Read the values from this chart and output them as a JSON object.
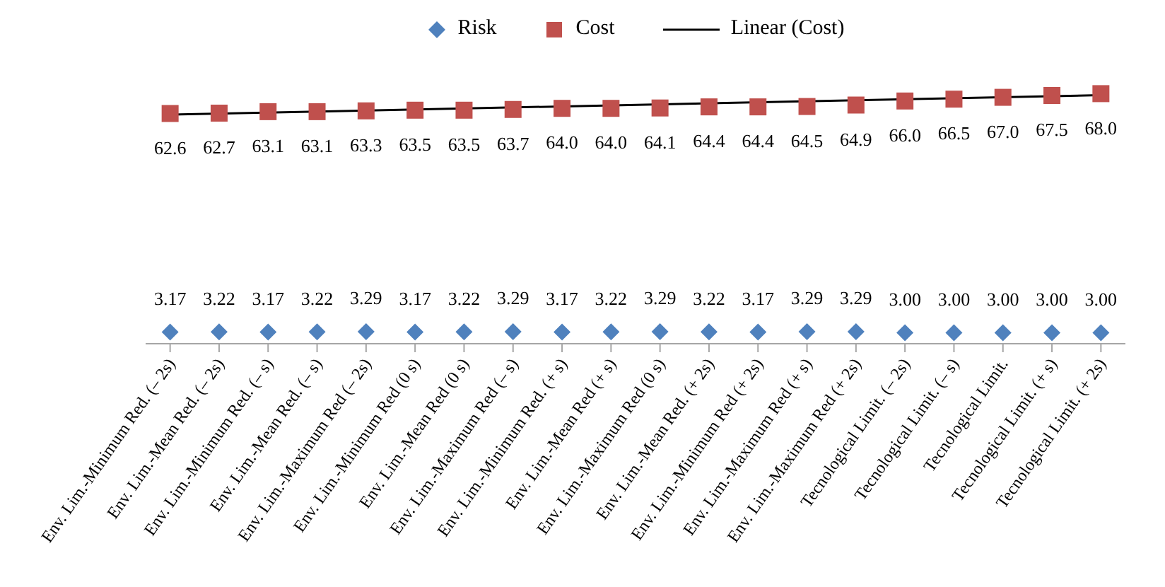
{
  "chart_data": {
    "type": "scatter",
    "categories": [
      "Env. Lim.-Minimum Red. (– 2s)",
      "Env. Lim.-Mean Red. (– 2s)",
      "Env. Lim.-Minimum Red. (– s)",
      "Env. Lim.-Mean Red. (– s)",
      "Env. Lim.-Maximum Red (– 2s)",
      "Env. Lim.-Minimum Red (0 s)",
      "Env. Lim.-Mean Red (0 s)",
      "Env. Lim.-Maximum Red (– s)",
      "Env. Lim.-Minimum Red. (+ s)",
      "Env. Lim.-Mean Red (+ s)",
      "Env. Lim.-Maximum Red (0 s)",
      "Env. Lim.-Mean Red. (+ 2s)",
      "Env. Lim.-Minimum Red (+ 2s)",
      "Env. Lim.-Maximum Red (+ s)",
      "Env. Lim.-Maximum Red (+ 2s)",
      "Tecnological Limit. (– 2s)",
      "Tecnological Limit. (– s)",
      "Tecnological Limit.",
      "Tecnological Limit. (+ s)",
      "Tecnological Limit. (+ 2s)"
    ],
    "series": [
      {
        "name": "Risk",
        "marker": "diamond",
        "color": "#4f81bd",
        "values": [
          3.17,
          3.22,
          3.17,
          3.22,
          3.29,
          3.17,
          3.22,
          3.29,
          3.17,
          3.22,
          3.29,
          3.22,
          3.17,
          3.29,
          3.29,
          3.0,
          3.0,
          3.0,
          3.0,
          3.0
        ],
        "value_labels": [
          "3.17",
          "3.22",
          "3.17",
          "3.22",
          "3.29",
          "3.17",
          "3.22",
          "3.29",
          "3.17",
          "3.22",
          "3.29",
          "3.22",
          "3.17",
          "3.29",
          "3.29",
          "3.00",
          "3.00",
          "3.00",
          "3.00",
          "3.00"
        ]
      },
      {
        "name": "Cost",
        "marker": "square",
        "color": "#c0504d",
        "values": [
          62.6,
          62.7,
          63.1,
          63.1,
          63.3,
          63.5,
          63.5,
          63.7,
          64.0,
          64.0,
          64.1,
          64.4,
          64.4,
          64.5,
          64.9,
          66.0,
          66.5,
          67.0,
          67.5,
          68.0
        ],
        "value_labels": [
          "62.6",
          "62.7",
          "63.1",
          "63.1",
          "63.3",
          "63.5",
          "63.5",
          "63.7",
          "64.0",
          "64.0",
          "64.1",
          "64.4",
          "64.4",
          "64.5",
          "64.9",
          "66.0",
          "66.5",
          "67.0",
          "67.5",
          "68.0"
        ]
      },
      {
        "name": "Linear (Cost)",
        "type": "line",
        "marker": "none",
        "color": "#000000",
        "x": [
          "Env. Lim.-Minimum Red. (– 2s)",
          "Tecnological Limit. (+ 2s)"
        ],
        "values": [
          62.3,
          67.6
        ]
      }
    ],
    "tick_labels": "x",
    "legend": "top"
  }
}
